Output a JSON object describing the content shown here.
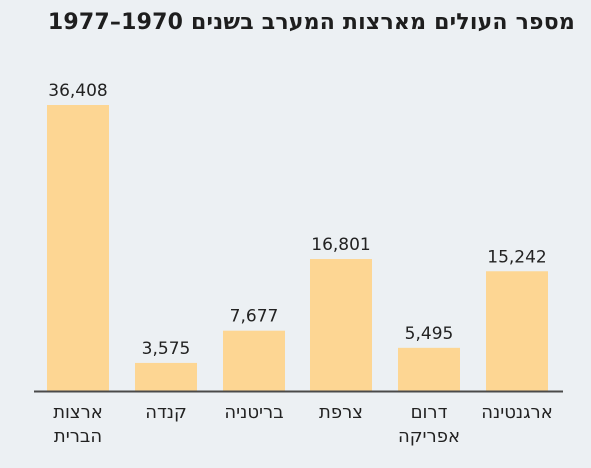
{
  "chart_data": {
    "type": "bar",
    "title": "מספר העולים מארצות המערב בשנים 1970–1977",
    "categories": [
      [
        "ארצות",
        "הברית"
      ],
      [
        "קנדה"
      ],
      [
        "בריטניה"
      ],
      [
        "צרפת"
      ],
      [
        "דרום",
        "אפריקה"
      ],
      [
        "ארגנטינה"
      ]
    ],
    "values": [
      36408,
      3575,
      7677,
      16801,
      5495,
      15242
    ],
    "value_labels": [
      "36,408",
      "3,575",
      "7,677",
      "16,801",
      "5,495",
      "15,242"
    ],
    "xlabel": "",
    "ylabel": "",
    "ylim": [
      0,
      36408
    ],
    "grid": false,
    "legend": "none"
  },
  "colors": {
    "background": "#ecf0f3",
    "bar": "#fdd693",
    "axis": "#4a4a4a",
    "text": "#222222"
  }
}
